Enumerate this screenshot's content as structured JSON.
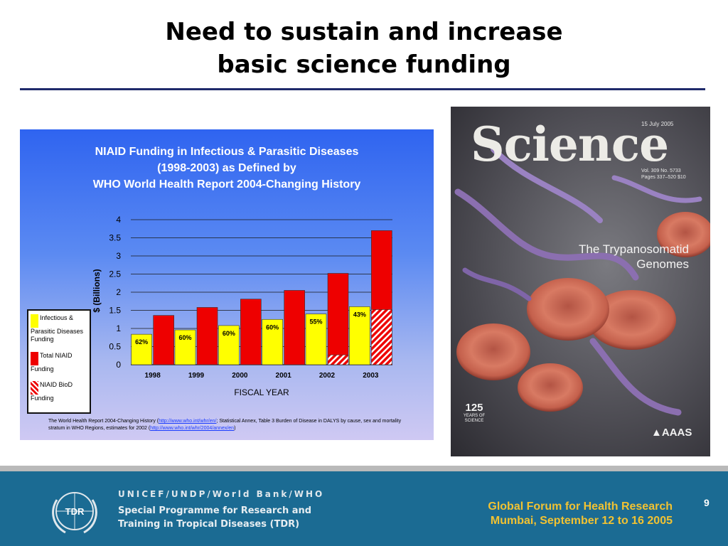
{
  "slide": {
    "title_line1": "Need to sustain and increase",
    "title_line2": "basic science funding",
    "page_number": "9"
  },
  "chart_data": {
    "type": "bar",
    "title_lines": [
      "NIAID Funding in Infectious & Parasitic Diseases",
      "(1998-2003) as Defined by",
      "WHO World Health Report 2004-Changing History"
    ],
    "xlabel": "FISCAL YEAR",
    "ylabel": "$ (Billions)",
    "ylim": [
      0,
      4
    ],
    "yticks": [
      "0",
      "0.5",
      "1",
      "1.5",
      "2",
      "2.5",
      "3",
      "3.5",
      "4"
    ],
    "categories": [
      "1998",
      "1999",
      "2000",
      "2001",
      "2002",
      "2003"
    ],
    "series": [
      {
        "name": "Infectious & Parasitic Diseases Funding",
        "color": "#ffff00",
        "values": [
          0.84,
          0.96,
          1.08,
          1.25,
          1.4,
          1.6
        ]
      },
      {
        "name": "Total NIAID Funding",
        "color": "#ee0000",
        "values": [
          1.36,
          1.58,
          1.81,
          2.05,
          2.52,
          3.7
        ]
      },
      {
        "name": "NIAID BioD Funding",
        "color": "#ee0000",
        "pattern": "hatched",
        "values": [
          0,
          0,
          0,
          0,
          0.27,
          1.52
        ]
      }
    ],
    "percent_labels": [
      "62%",
      "60%",
      "60%",
      "60%",
      "55%",
      "43%"
    ],
    "legend": [
      {
        "label": "Infectious & Parasitic Diseases Funding",
        "swatch": "#ffff00"
      },
      {
        "label": "Total NIAID Funding",
        "swatch": "#ee0000"
      },
      {
        "label": "NIAID BioD Funding",
        "swatch": "hatched"
      }
    ],
    "grid": true,
    "legend_position": "left"
  },
  "footnote": {
    "part1": "The World Health Report 2004-Changing History (",
    "link1": "http://www.who.int/whr/en/",
    "part2": "; Statistical Annex, Table 3 Burden of Disease in DALYS by cause, sex and mortality stratum in WHO Regions, estimates for 2002 (",
    "link2": "http://www.who.int/whr/2004/annex/en",
    "part3": ")"
  },
  "cover": {
    "masthead": "Science",
    "date": "15 July 2005",
    "vol_line1": "Vol. 309    No. 5733",
    "vol_line2": "Pages 337–520    $10",
    "subtitle_line1": "The Trypanosomatid",
    "subtitle_line2": "Genomes",
    "anniversary": "125",
    "anniversary_small": "YEARS OF SCIENCE",
    "publisher": "AAAS"
  },
  "footer": {
    "org_line1": "UNICEF/UNDP/World Bank/WHO",
    "org_line2": "Special Programme for Research and",
    "org_line3": "Training in Tropical Diseases (TDR)",
    "logo_text": "TDR",
    "event_line1": "Global Forum for Health Research",
    "event_line2": "Mumbai, September 12 to 16 2005"
  },
  "colors": {
    "title_rule": "#1f2a6b",
    "footer_bg": "#1b6b93",
    "event_text": "#f1c232"
  }
}
